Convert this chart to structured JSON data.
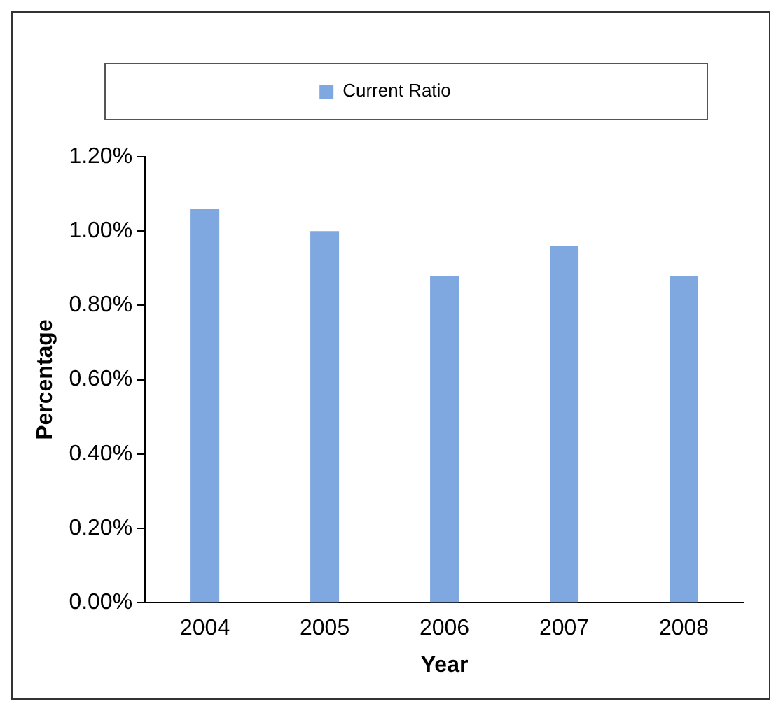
{
  "chart_data": {
    "type": "bar",
    "xlabel": "Year",
    "ylabel": "Percentage",
    "categories": [
      "2004",
      "2005",
      "2006",
      "2007",
      "2008"
    ],
    "series": [
      {
        "name": "Current Ratio",
        "color": "#80a8e0",
        "values": [
          1.06,
          1.0,
          0.88,
          0.96,
          0.88
        ]
      }
    ],
    "ylim": [
      0,
      1.2
    ],
    "yticks": [
      {
        "value": 0,
        "label": "0.00%"
      },
      {
        "value": 0.2,
        "label": "0.20%"
      },
      {
        "value": 0.4,
        "label": "0.40%"
      },
      {
        "value": 0.6,
        "label": "0.60%"
      },
      {
        "value": 0.8,
        "label": "0.80%"
      },
      {
        "value": 1.0,
        "label": "1.00%"
      },
      {
        "value": 1.2,
        "label": "1.20%"
      }
    ],
    "grid": false,
    "legend": "top"
  }
}
